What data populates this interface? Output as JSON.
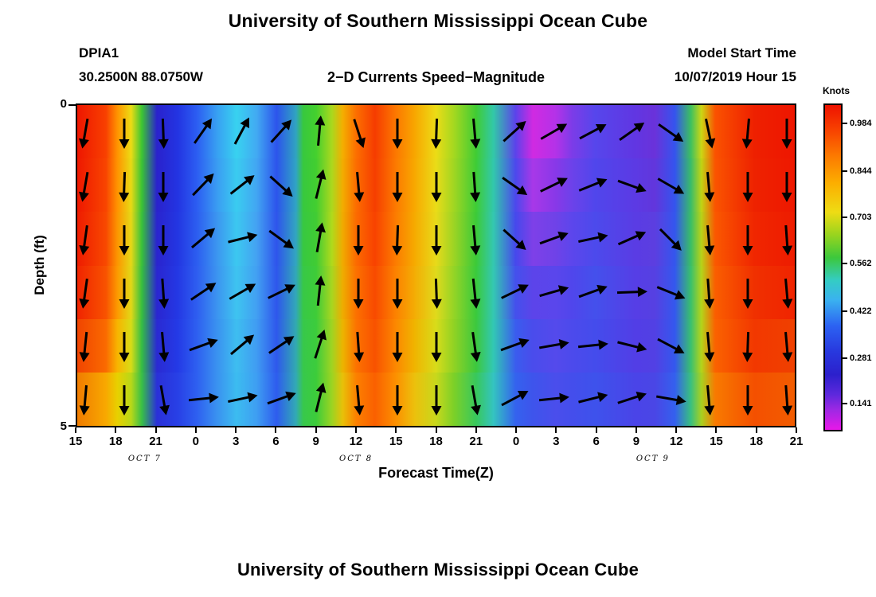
{
  "page": {
    "top_title": "University of Southern Mississippi Ocean Cube",
    "station_id": "DPIA1",
    "station_coords": "30.2500N 88.0750W",
    "plot_title": "2−D Currents Speed−Magnitude",
    "model_start_label": "Model Start Time",
    "model_start_value": "10/07/2019 Hour 15",
    "bottom_title": "University of Southern Mississippi Ocean Cube"
  },
  "chart_data": {
    "type": "heatmap",
    "title": "2−D Currents Speed−Magnitude",
    "station": "DPIA1",
    "location": "30.2500N 88.0750W",
    "model_start": "10/07/2019 Hour 15",
    "xlabel": "Forecast Time(Z)",
    "ylabel": "Depth (ft)",
    "y_ticks": [
      "0",
      "5"
    ],
    "y_range_ft": [
      0,
      5
    ],
    "x_ticks": [
      "15",
      "18",
      "21",
      "0",
      "3",
      "6",
      "9",
      "12",
      "15",
      "18",
      "21",
      "0",
      "3",
      "6",
      "9",
      "12",
      "15",
      "18",
      "21"
    ],
    "date_labels": [
      {
        "label": "OCT 7",
        "percent": 9.6
      },
      {
        "label": "OCT 8",
        "percent": 38.9
      },
      {
        "label": "OCT 9",
        "percent": 80.1
      }
    ],
    "colorbar": {
      "label": "Knots",
      "tick_values": [
        "0.984",
        "0.844",
        "0.703",
        "0.562",
        "0.422",
        "0.281",
        "0.141"
      ],
      "tick_percents": [
        6.1,
        20.7,
        34.6,
        48.8,
        63.4,
        77.6,
        91.5
      ],
      "gradient_stops": [
        [
          "0",
          "#ee1200"
        ],
        [
          "8",
          "#f84400"
        ],
        [
          "16",
          "#fc7c00"
        ],
        [
          "24",
          "#fcae00"
        ],
        [
          "33",
          "#eedc14"
        ],
        [
          "40",
          "#98d41e"
        ],
        [
          "47",
          "#3cc83c"
        ],
        [
          "54",
          "#34ccc4"
        ],
        [
          "60",
          "#3ab2f0"
        ],
        [
          "68",
          "#2c62f2"
        ],
        [
          "76",
          "#2838de"
        ],
        [
          "83",
          "#2c20cc"
        ],
        [
          "89",
          "#5c28dc"
        ],
        [
          "94",
          "#a028e4"
        ],
        [
          "100",
          "#e818e8"
        ]
      ]
    },
    "heatmap": {
      "stop_percents": [
        0,
        4,
        5.6,
        7.5,
        9,
        11.1,
        14,
        16.7,
        19.5,
        22.2,
        25,
        27.8,
        30.5,
        31.5,
        33.3,
        35.5,
        37,
        38.9,
        41.5,
        44.4,
        47,
        50,
        52.5,
        55.6,
        58,
        61.1,
        63.5,
        66.7,
        69,
        72.2,
        77.8,
        80.5,
        83.3,
        85.5,
        87,
        88.9,
        94.4,
        100
      ],
      "rows_colors": [
        [
          "#ee1600",
          "#f84000",
          "#ff9400",
          "#ecdc14",
          "#3cc632",
          "#2a22cc",
          "#2334e2",
          "#2c5ef2",
          "#38a0f2",
          "#38d2f0",
          "#42aaf2",
          "#2c54ec",
          "#30a4c0",
          "#38c83e",
          "#44d02e",
          "#aad81e",
          "#f4ae00",
          "#fc6e00",
          "#f63c00",
          "#fc7800",
          "#f8a600",
          "#ecdc16",
          "#a4d820",
          "#40cc34",
          "#32c8a8",
          "#5c42ea",
          "#d02ae2",
          "#b432e8",
          "#7c3ce8",
          "#5646ec",
          "#6136e2",
          "#6a32da",
          "#3554ee",
          "#3cc060",
          "#ccd614",
          "#fa5200",
          "#ee2000",
          "#ee1600"
        ],
        [
          "#ee1800",
          "#f84400",
          "#ff9400",
          "#e8da14",
          "#3ac434",
          "#2a22cc",
          "#2334e2",
          "#2c5ef2",
          "#3a9cf2",
          "#3accf0",
          "#42a6f2",
          "#2c54ec",
          "#30a4c4",
          "#38c83e",
          "#42ce30",
          "#acd81e",
          "#f2ac00",
          "#fc6c00",
          "#f63e00",
          "#fc7a00",
          "#f8a800",
          "#eadc18",
          "#a0d622",
          "#3ecc36",
          "#32c8ac",
          "#4c48ec",
          "#a838e8",
          "#8838e8",
          "#6c42ea",
          "#5046ec",
          "#5c3ae4",
          "#6236dc",
          "#3454ee",
          "#38bc6a",
          "#c0d414",
          "#fa5400",
          "#ee2200",
          "#ee1800"
        ],
        [
          "#ee1c00",
          "#f84800",
          "#fc9600",
          "#e6d816",
          "#38c23a",
          "#2a24ce",
          "#2336e2",
          "#2c5ef0",
          "#3c96f0",
          "#3cc8f0",
          "#44a2f2",
          "#2e54ec",
          "#32a6c0",
          "#38c840",
          "#40cc34",
          "#b0da1c",
          "#f0aa00",
          "#fc6a00",
          "#f84200",
          "#fc7c00",
          "#f6aa00",
          "#e8da1a",
          "#9cd424",
          "#3cca38",
          "#34c8b0",
          "#4648ec",
          "#7e40e8",
          "#6f42e8",
          "#5c46ec",
          "#4c4aec",
          "#5a3ce4",
          "#5c3ee0",
          "#3456ee",
          "#38be66",
          "#b8d218",
          "#fa5800",
          "#f02600",
          "#ee1c00"
        ],
        [
          "#f02400",
          "#f85200",
          "#fc9a00",
          "#e2d816",
          "#36c03e",
          "#2a26d0",
          "#2438e4",
          "#2e5ef0",
          "#3c94f0",
          "#3ec4f0",
          "#42a0f2",
          "#2e56ec",
          "#32a8b8",
          "#38c846",
          "#3ecc38",
          "#a8d620",
          "#eeac00",
          "#fc7000",
          "#f84a00",
          "#fc8200",
          "#f4ac04",
          "#e0da1c",
          "#94d426",
          "#3aca3c",
          "#34c8b2",
          "#4450ec",
          "#5c44ea",
          "#5a46ec",
          "#5046ec",
          "#4450ec",
          "#563ee6",
          "#5640e2",
          "#3458ee",
          "#38c06c",
          "#b4d41a",
          "#fa5e00",
          "#f03000",
          "#f02400"
        ],
        [
          "#f04400",
          "#fa6a00",
          "#f8b400",
          "#d8dc16",
          "#34be44",
          "#2a2ad2",
          "#243ae6",
          "#2e60f0",
          "#3a92f0",
          "#3ebef0",
          "#409cf2",
          "#2e58ec",
          "#32aab0",
          "#38c84a",
          "#3ccc3c",
          "#a0d422",
          "#ecb400",
          "#fc7200",
          "#f85200",
          "#fc8800",
          "#f0b400",
          "#d8dc1a",
          "#90d224",
          "#3cc83e",
          "#32c8b4",
          "#3a5cee",
          "#4a4cec",
          "#544aec",
          "#4c4aec",
          "#444cec",
          "#523ee6",
          "#5240e4",
          "#3458ee",
          "#38c070",
          "#b4d41a",
          "#fa6200",
          "#f23800",
          "#f04000"
        ],
        [
          "#f07c00",
          "#f8a800",
          "#e8d000",
          "#b8d818",
          "#38c046",
          "#2a30d8",
          "#2840e6",
          "#2e60f0",
          "#3a92f0",
          "#3cbcf0",
          "#3e9ef2",
          "#2e5cee",
          "#32aab4",
          "#38c84c",
          "#3ccc3a",
          "#9cd422",
          "#e8c008",
          "#fc8000",
          "#fa6000",
          "#fc9000",
          "#ecc00c",
          "#c8d81c",
          "#7cd028",
          "#38c85c",
          "#34c4c0",
          "#3462ee",
          "#3e54ec",
          "#4a4eec",
          "#444eec",
          "#3e52ec",
          "#4a44e8",
          "#4a46e6",
          "#3460ee",
          "#38c080",
          "#a8d020",
          "#f87a00",
          "#f45000",
          "#f25c00"
        ]
      ]
    },
    "arrows": {
      "note": "angles in degrees, counter-clockwise from east; rows top-to-bottom, cols left-to-right at each 3h tick",
      "angles_deg": [
        [
          -100,
          -90,
          -88,
          55,
          62,
          48,
          85,
          -72,
          -90,
          -92,
          -85,
          42,
          30,
          28,
          35,
          -35,
          -78,
          -95,
          -90
        ],
        [
          -100,
          -92,
          -90,
          46,
          38,
          -42,
          76,
          -85,
          -90,
          -90,
          -86,
          -35,
          26,
          22,
          -20,
          -30,
          -85,
          -90,
          -90
        ],
        [
          -98,
          -90,
          -90,
          40,
          14,
          -36,
          80,
          -90,
          -92,
          -90,
          -85,
          -42,
          20,
          12,
          24,
          -45,
          -85,
          -90,
          -86
        ],
        [
          -98,
          -90,
          -86,
          34,
          30,
          26,
          84,
          -90,
          -90,
          -88,
          -84,
          26,
          16,
          20,
          2,
          -22,
          -86,
          -90,
          -85
        ],
        [
          -96,
          -90,
          -85,
          20,
          40,
          34,
          72,
          -86,
          -90,
          -90,
          -82,
          20,
          10,
          6,
          -14,
          -28,
          -85,
          -92,
          -85
        ],
        [
          -95,
          -90,
          -80,
          6,
          12,
          20,
          76,
          -85,
          -90,
          -90,
          -80,
          28,
          6,
          14,
          18,
          -10,
          -85,
          -90,
          -86
        ]
      ]
    }
  }
}
